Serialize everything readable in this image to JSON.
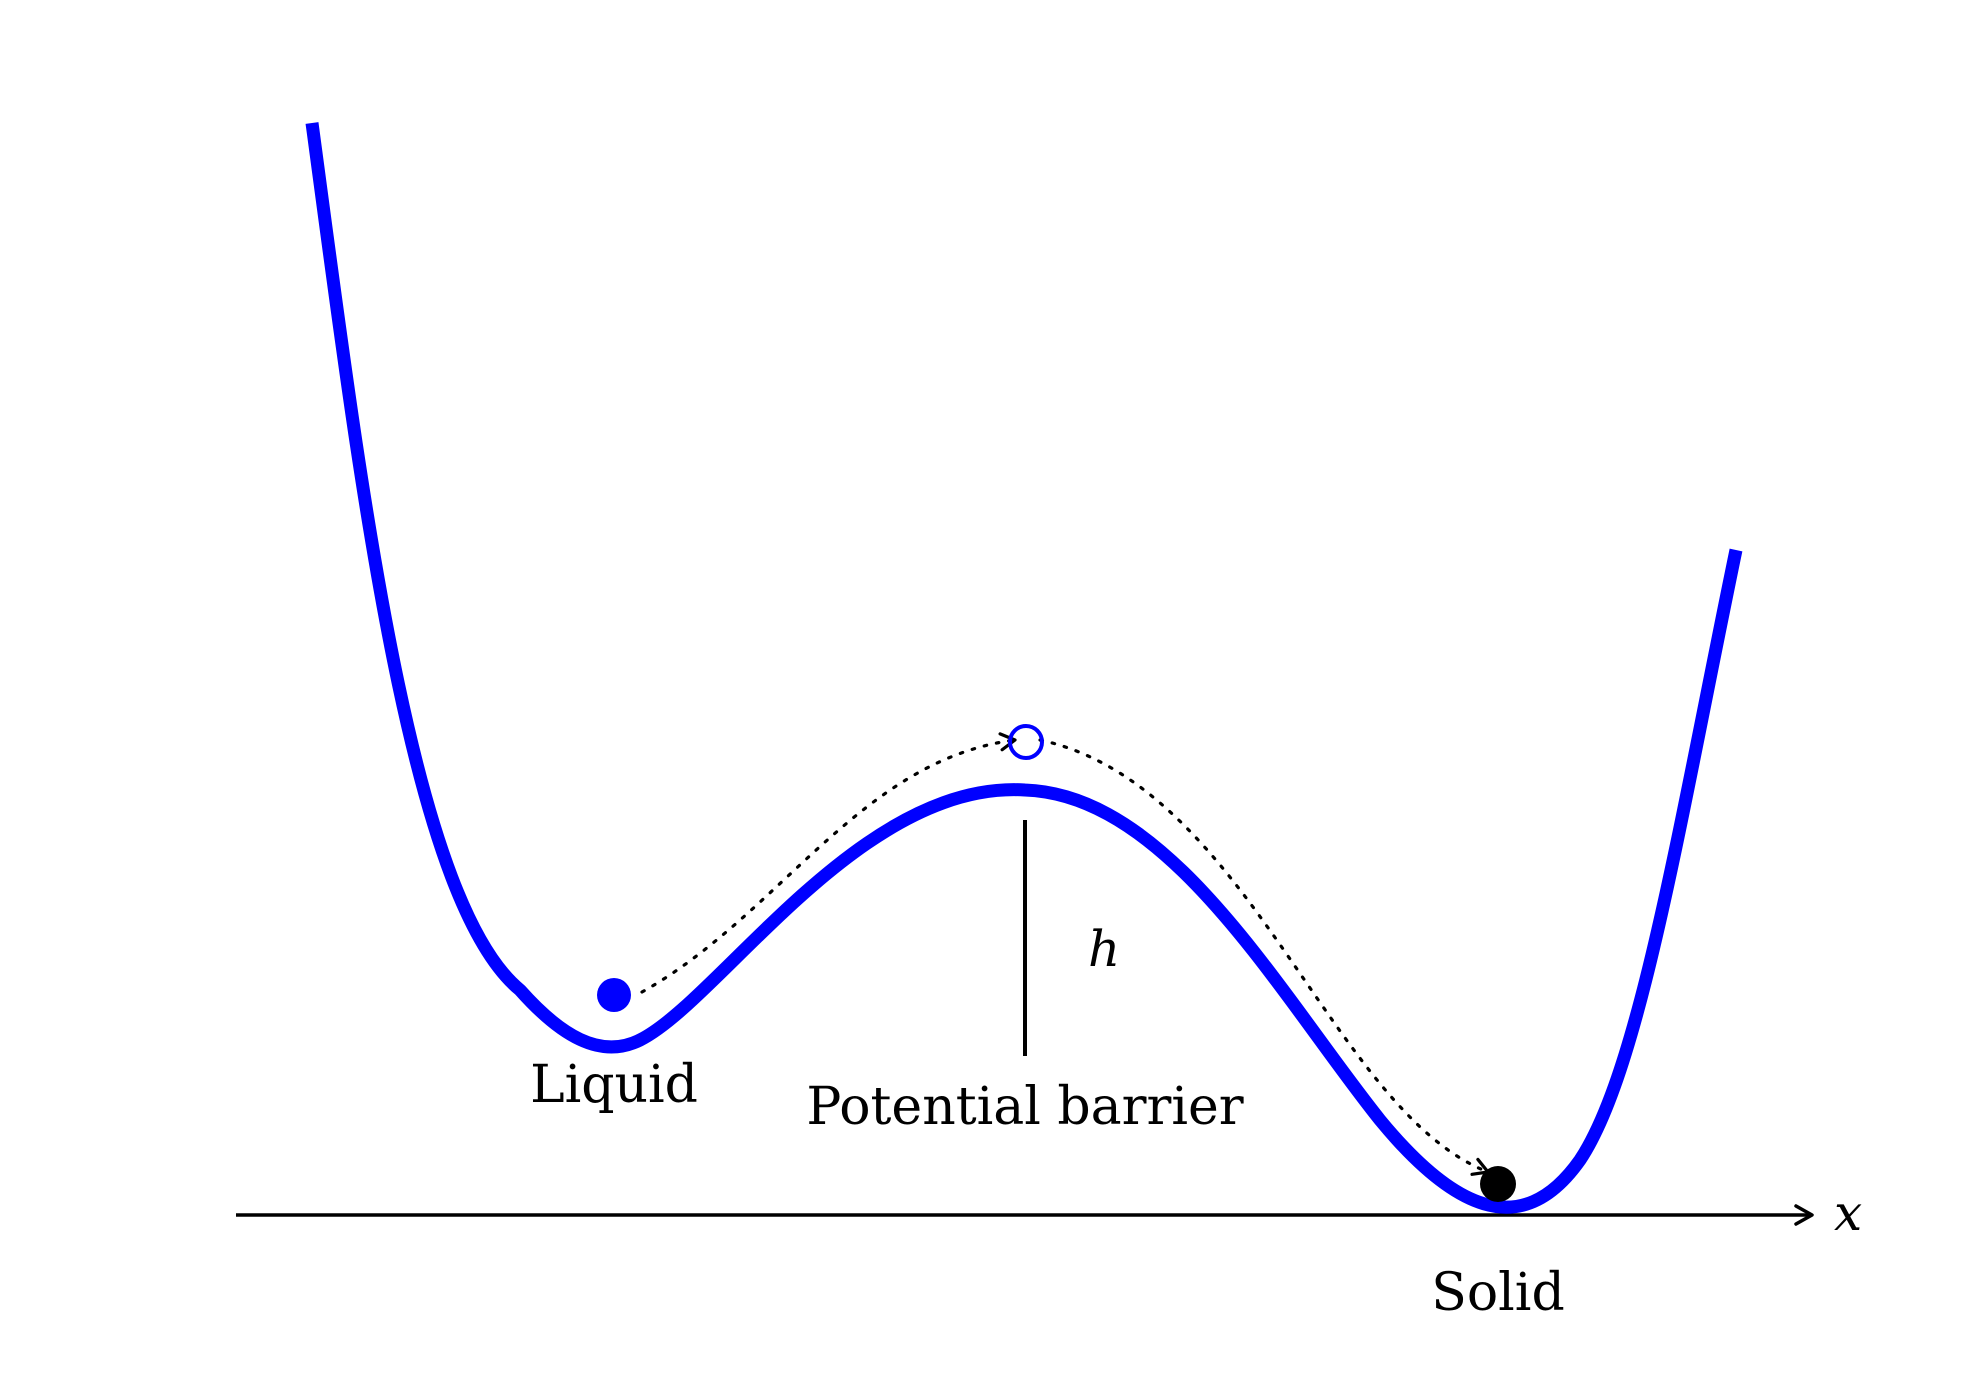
{
  "labels": {
    "liquid": "Liquid",
    "barrier": "Potential barrier",
    "height": "h",
    "solid": "Solid",
    "axis": "x"
  },
  "colors": {
    "curve": "#0000ff",
    "liquid_particle": "#0000ff",
    "transition_particle": "#0000ff",
    "solid_particle": "#000000",
    "axis": "#000000",
    "path": "#000000"
  },
  "icons": {
    "liquid_particle": "filled-circle",
    "transition_particle": "hollow-circle",
    "solid_particle": "filled-circle"
  }
}
